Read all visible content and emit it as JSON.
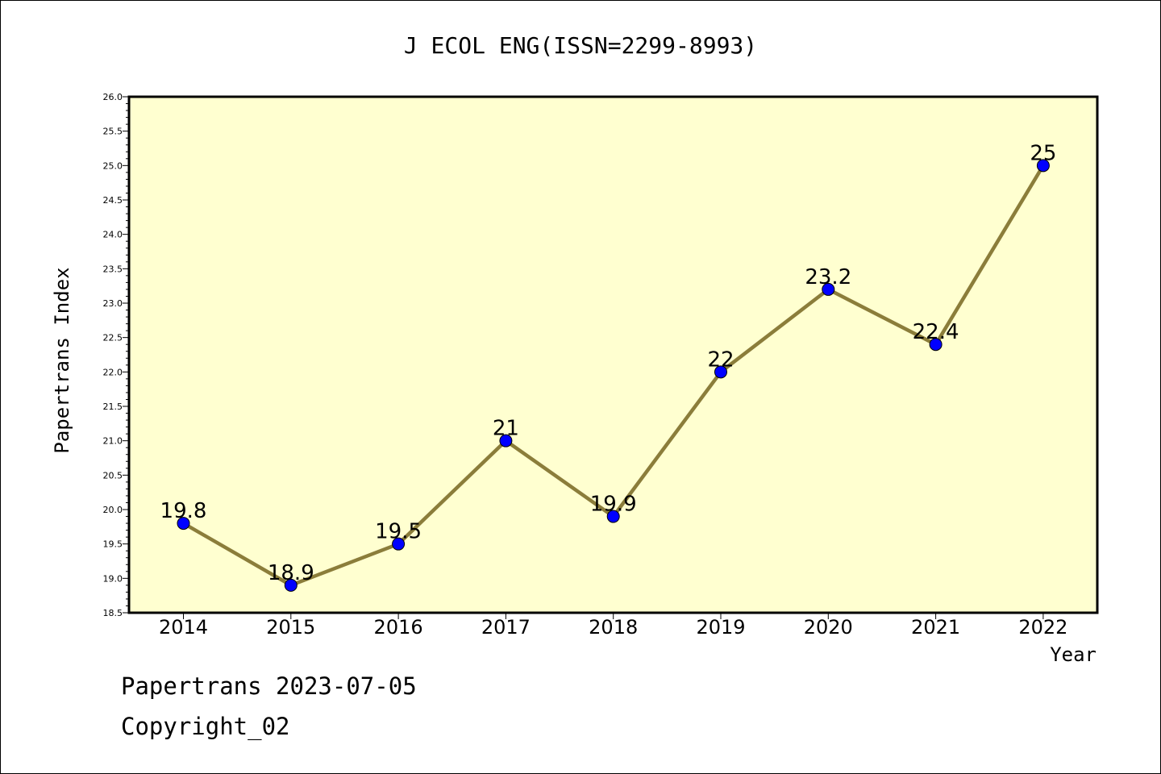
{
  "chart_data": {
    "type": "line",
    "title": "J ECOL ENG(ISSN=2299-8993)",
    "xlabel": "Year",
    "ylabel": "Papertrans Index",
    "categories": [
      "2014",
      "2015",
      "2016",
      "2017",
      "2018",
      "2019",
      "2020",
      "2021",
      "2022"
    ],
    "series": [
      {
        "values": [
          19.8,
          18.9,
          19.5,
          21,
          19.9,
          22,
          23.2,
          22.4,
          25
        ],
        "labels": [
          "19.8",
          "18.9",
          "19.5",
          "21",
          "19.9",
          "22",
          "23.2",
          "22.4",
          "25"
        ]
      }
    ],
    "ylim": [
      18.5,
      26.0
    ],
    "yticks": [
      "18.5",
      "19.0",
      "19.5",
      "20.0",
      "20.5",
      "21.0",
      "21.5",
      "22.0",
      "22.5",
      "23.0",
      "23.5",
      "24.0",
      "24.5",
      "25.0",
      "25.5",
      "26.0"
    ],
    "grid": false,
    "colors": {
      "plot_background": "#ffffd0",
      "line": "#8b7d3a",
      "marker": "#0000ff"
    }
  },
  "footer": {
    "line1": "Papertrans 2023-07-05",
    "line2": "Copyright_02"
  }
}
